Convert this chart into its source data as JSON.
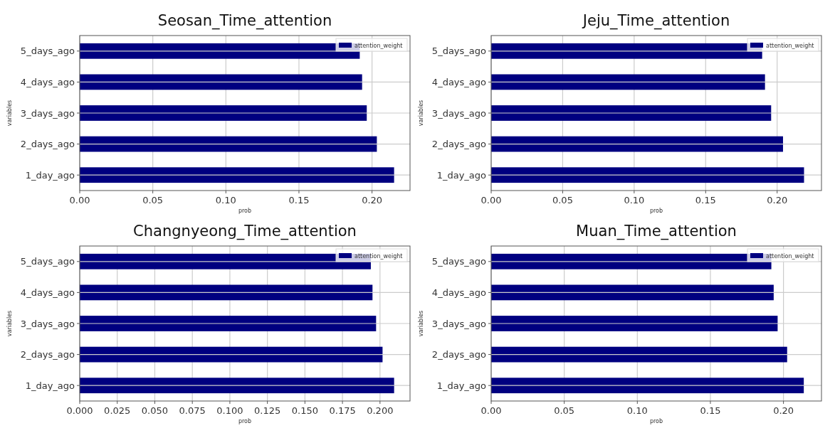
{
  "chart_data": [
    {
      "type": "bar",
      "orientation": "horizontal",
      "title": "Seosan_Time_attention",
      "xlabel": "prob",
      "ylabel": "variables",
      "categories": [
        "5_days_ago",
        "4_days_ago",
        "3_days_ago",
        "2_days_ago",
        "1_day_ago"
      ],
      "series": [
        {
          "name": "attention_weight",
          "color": "#000080",
          "values": [
            0.1916,
            0.1932,
            0.1964,
            0.2033,
            0.2151
          ]
        }
      ],
      "xlim": [
        0,
        0.226
      ],
      "xticks": [
        {
          "value": 0,
          "label": "0.00"
        },
        {
          "value": 0.05,
          "label": "0.05"
        },
        {
          "value": 0.1,
          "label": "0.10"
        },
        {
          "value": 0.15,
          "label": "0.15"
        },
        {
          "value": 0.2,
          "label": "0.20"
        }
      ],
      "grid": true,
      "legend": "top right"
    },
    {
      "type": "bar",
      "orientation": "horizontal",
      "title": "Jeju_Time_attention",
      "xlabel": "prob",
      "ylabel": "variables",
      "categories": [
        "5_days_ago",
        "4_days_ago",
        "3_days_ago",
        "2_days_ago",
        "1_day_ago"
      ],
      "series": [
        {
          "name": "attention_weight",
          "color": "#000080",
          "values": [
            0.1895,
            0.1915,
            0.1958,
            0.2041,
            0.2188
          ]
        }
      ],
      "xlim": [
        0,
        0.231
      ],
      "xticks": [
        {
          "value": 0,
          "label": "0.00"
        },
        {
          "value": 0.05,
          "label": "0.05"
        },
        {
          "value": 0.1,
          "label": "0.10"
        },
        {
          "value": 0.15,
          "label": "0.15"
        },
        {
          "value": 0.2,
          "label": "0.20"
        }
      ],
      "grid": true,
      "legend": "top right"
    },
    {
      "type": "bar",
      "orientation": "horizontal",
      "title": "Changnyeong_Time_attention",
      "xlabel": "prob",
      "ylabel": "variables",
      "categories": [
        "5_days_ago",
        "4_days_ago",
        "3_days_ago",
        "2_days_ago",
        "1_day_ago"
      ],
      "series": [
        {
          "name": "attention_weight",
          "color": "#000080",
          "values": [
            0.1939,
            0.195,
            0.1974,
            0.2017,
            0.2094
          ]
        }
      ],
      "xlim": [
        0,
        0.22
      ],
      "xticks": [
        {
          "value": 0,
          "label": "0.000"
        },
        {
          "value": 0.025,
          "label": "0.025"
        },
        {
          "value": 0.05,
          "label": "0.050"
        },
        {
          "value": 0.075,
          "label": "0.075"
        },
        {
          "value": 0.1,
          "label": "0.100"
        },
        {
          "value": 0.125,
          "label": "0.125"
        },
        {
          "value": 0.15,
          "label": "0.150"
        },
        {
          "value": 0.175,
          "label": "0.175"
        },
        {
          "value": 0.2,
          "label": "0.200"
        }
      ],
      "grid": true,
      "legend": "top right"
    },
    {
      "type": "bar",
      "orientation": "horizontal",
      "title": "Muan_Time_attention",
      "xlabel": "prob",
      "ylabel": "variables",
      "categories": [
        "5_days_ago",
        "4_days_ago",
        "3_days_ago",
        "2_days_ago",
        "1_day_ago"
      ],
      "series": [
        {
          "name": "attention_weight",
          "color": "#000080",
          "values": [
            0.1917,
            0.1933,
            0.196,
            0.2025,
            0.2139
          ]
        }
      ],
      "xlim": [
        0,
        0.226
      ],
      "xticks": [
        {
          "value": 0,
          "label": "0.00"
        },
        {
          "value": 0.05,
          "label": "0.05"
        },
        {
          "value": 0.1,
          "label": "0.10"
        },
        {
          "value": 0.15,
          "label": "0.15"
        },
        {
          "value": 0.2,
          "label": "0.20"
        }
      ],
      "grid": true,
      "legend": "top right"
    }
  ]
}
